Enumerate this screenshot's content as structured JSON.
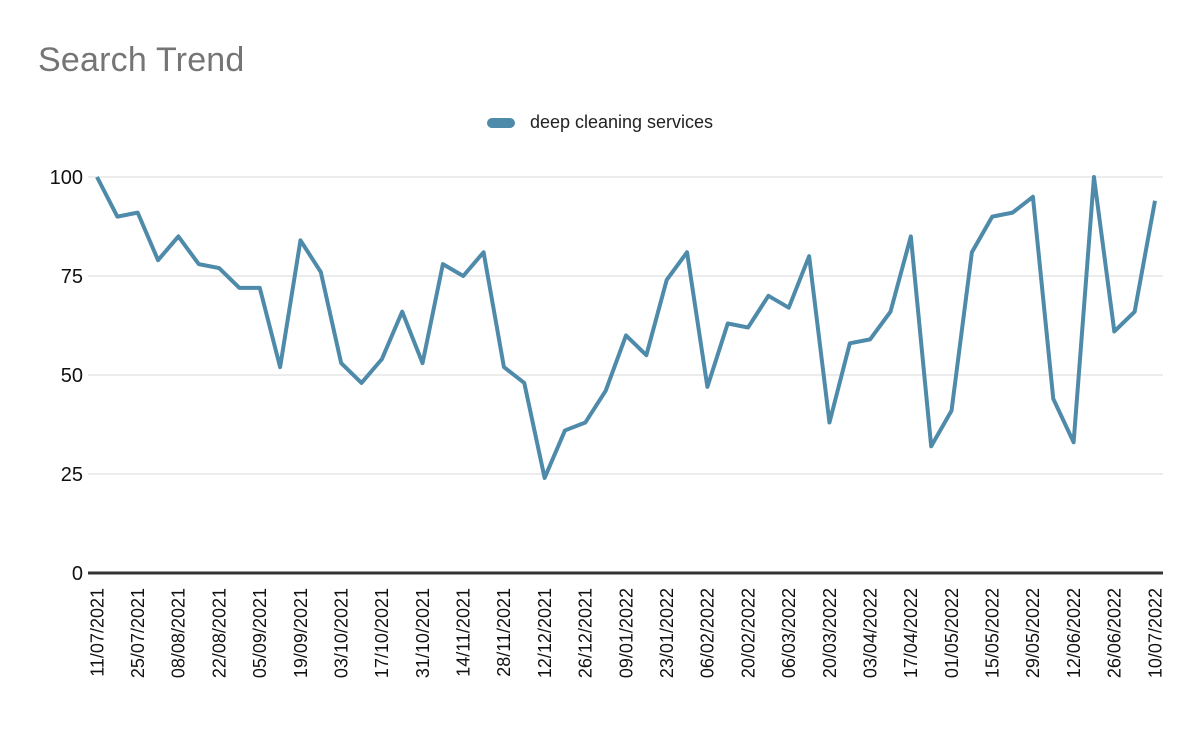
{
  "chart_data": {
    "type": "line",
    "title": "Search Trend",
    "legend_position": "top-center",
    "series": [
      {
        "name": "deep cleaning services",
        "color": "#4e8aa9",
        "values": [
          100,
          90,
          91,
          79,
          85,
          78,
          77,
          72,
          72,
          52,
          84,
          76,
          53,
          48,
          54,
          66,
          53,
          78,
          75,
          81,
          52,
          48,
          24,
          36,
          38,
          46,
          60,
          55,
          74,
          81,
          47,
          63,
          62,
          70,
          67,
          80,
          38,
          58,
          59,
          66,
          85,
          32,
          41,
          81,
          90,
          91,
          95,
          44,
          33,
          100,
          61,
          66,
          94
        ]
      }
    ],
    "x_tick_labels": [
      "11/07/2021",
      "25/07/2021",
      "08/08/2021",
      "22/08/2021",
      "05/09/2021",
      "19/09/2021",
      "03/10/2021",
      "17/10/2021",
      "31/10/2021",
      "14/11/2021",
      "28/11/2021",
      "12/12/2021",
      "26/12/2021",
      "09/01/2022",
      "23/01/2022",
      "06/02/2022",
      "20/02/2022",
      "06/03/2022",
      "20/03/2022",
      "03/04/2022",
      "17/04/2022",
      "01/05/2022",
      "15/05/2022",
      "29/05/2022",
      "12/06/2022",
      "26/06/2022",
      "10/07/2022"
    ],
    "x_ticks_every_n_points": 2,
    "x_tick_rotation_deg": -90,
    "ylim": [
      0,
      100
    ],
    "y_ticks": [
      0,
      25,
      50,
      75,
      100
    ],
    "grid": "horizontal",
    "colors": {
      "gridline": "#d9d9d9",
      "axis_line": "#333333",
      "tick_label": "#111111",
      "title": "#757575",
      "background": "#ffffff"
    }
  }
}
